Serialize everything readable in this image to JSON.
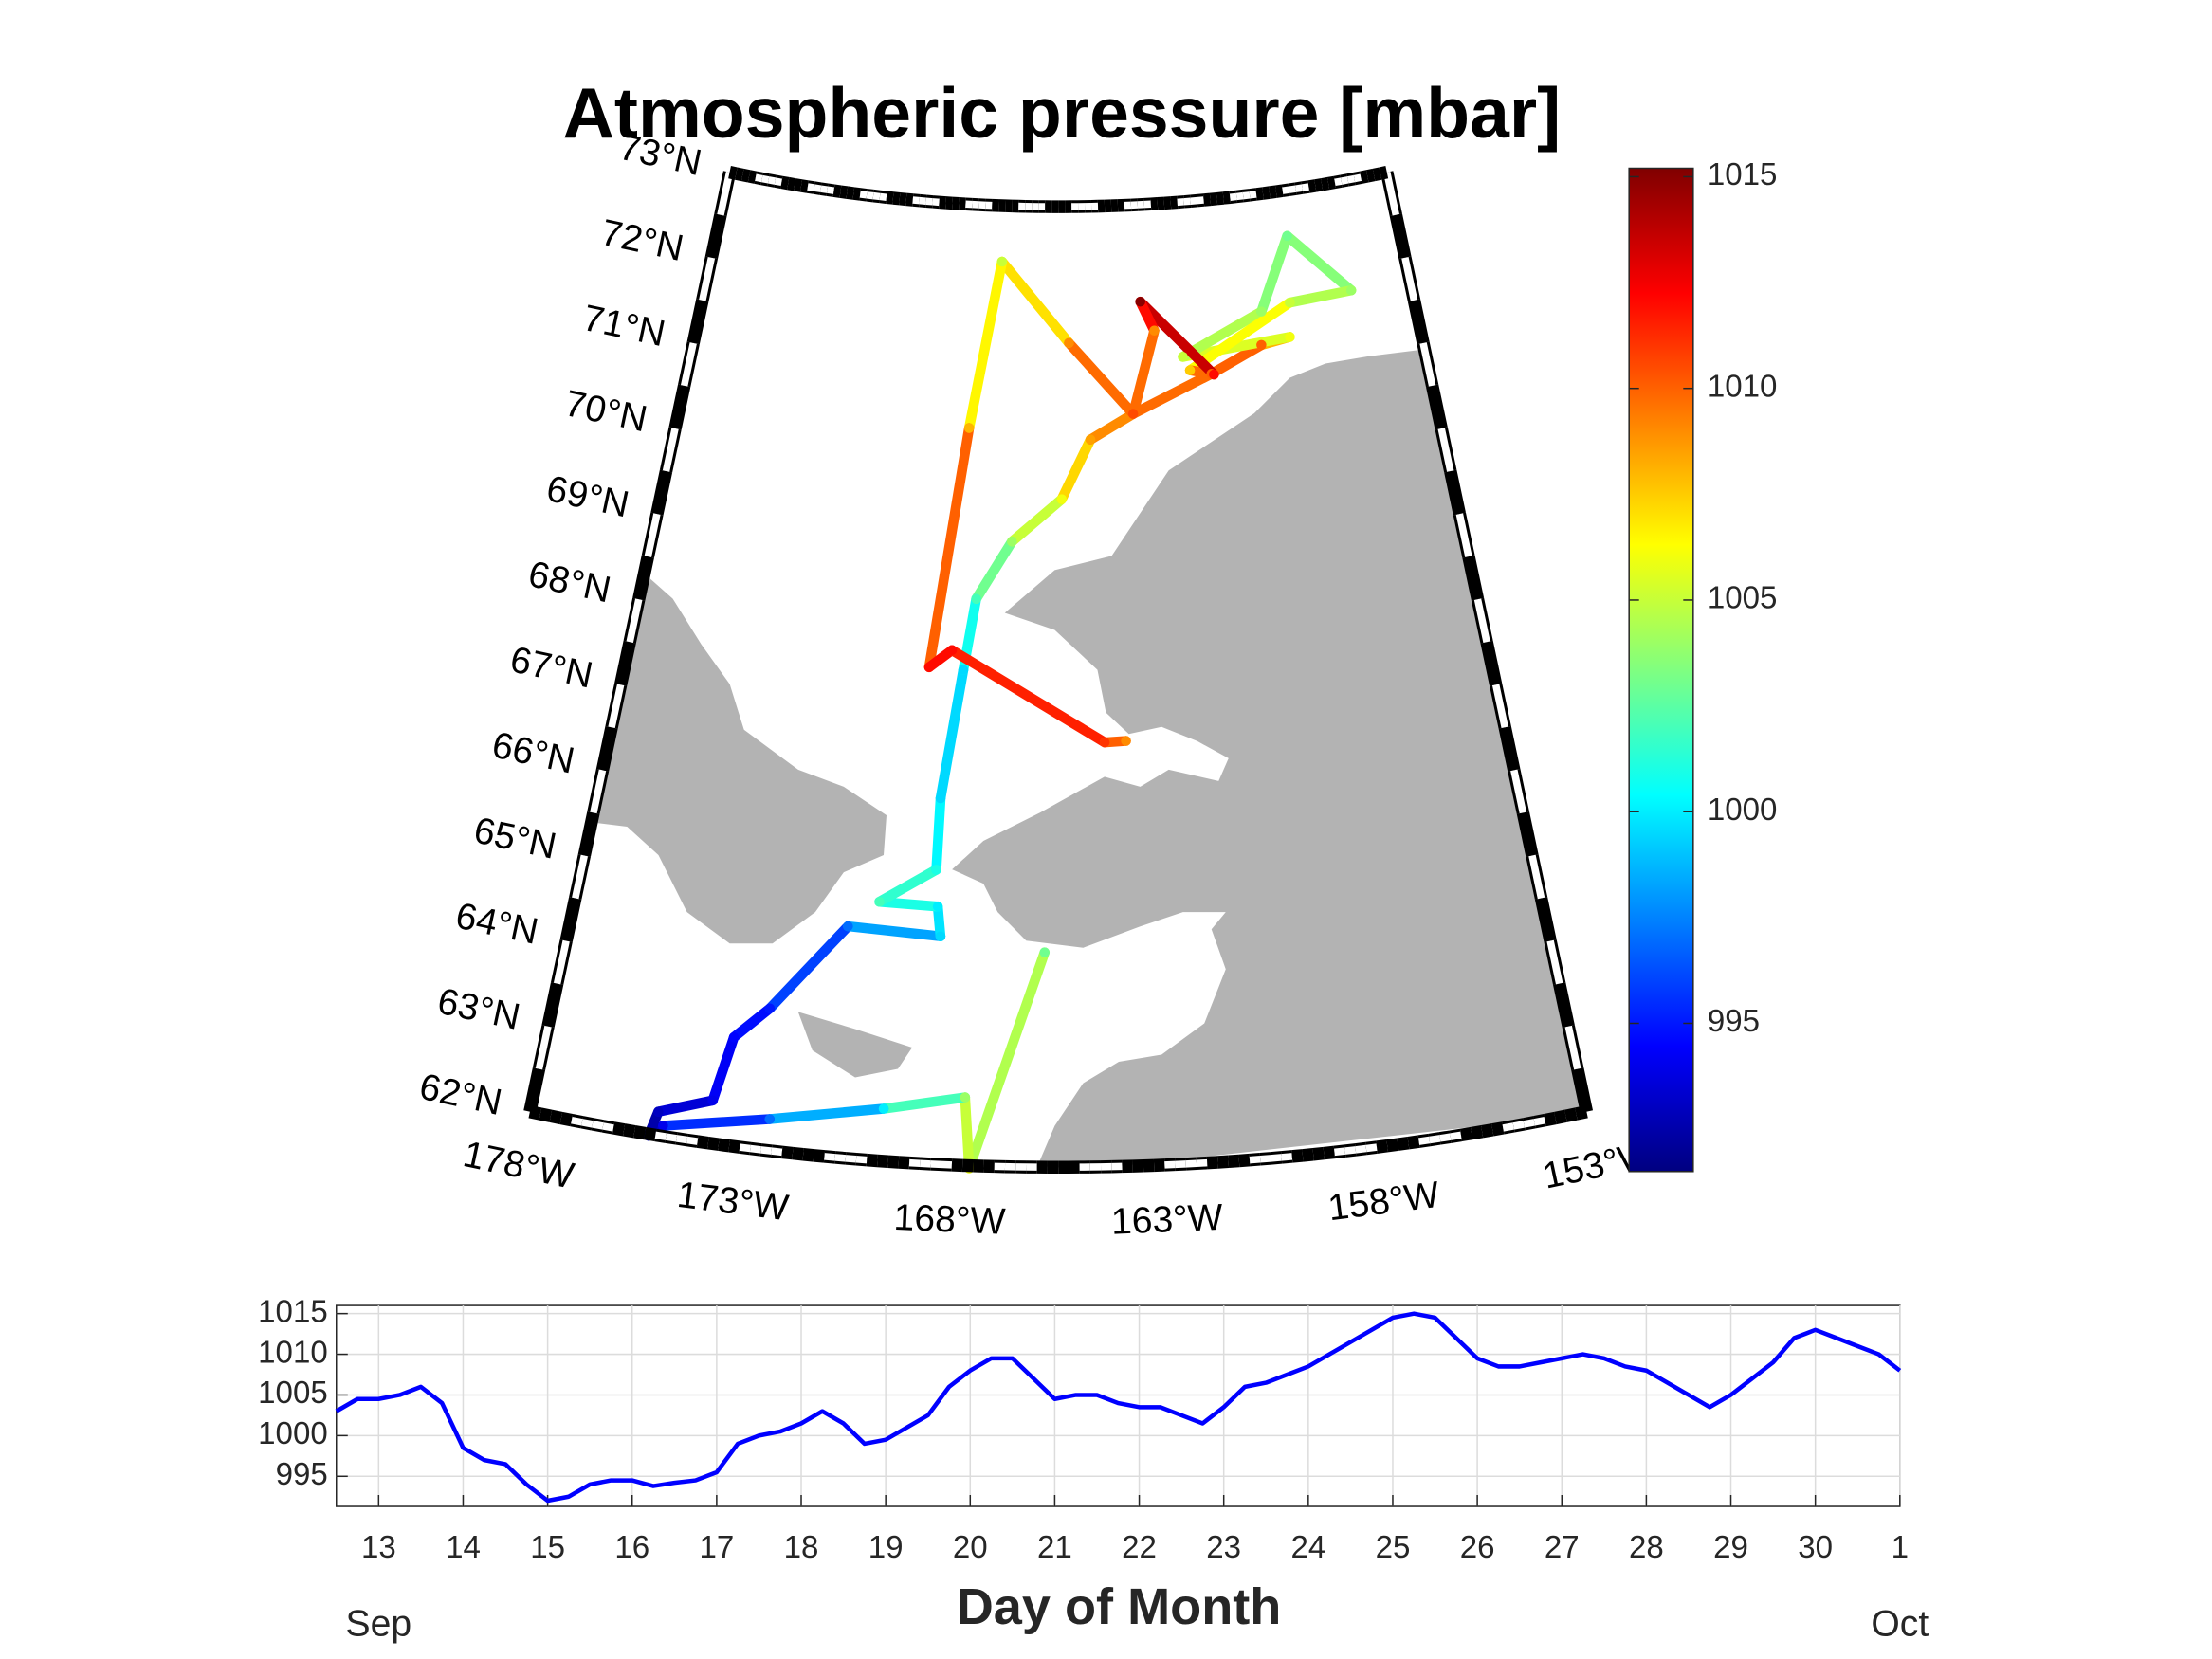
{
  "chart_data": [
    {
      "type": "map",
      "title": "Atmospheric pressure [mbar]",
      "latlim": [
        62,
        73
      ],
      "lonlim": [
        -178,
        -153
      ],
      "latticks": [
        {
          "value": 62,
          "label": "62°N"
        },
        {
          "value": 63,
          "label": "63°N"
        },
        {
          "value": 64,
          "label": "64°N"
        },
        {
          "value": 65,
          "label": "65°N"
        },
        {
          "value": 66,
          "label": "66°N"
        },
        {
          "value": 67,
          "label": "67°N"
        },
        {
          "value": 68,
          "label": "68°N"
        },
        {
          "value": 69,
          "label": "69°N"
        },
        {
          "value": 70,
          "label": "70°N"
        },
        {
          "value": 71,
          "label": "71°N"
        },
        {
          "value": 72,
          "label": "72°N"
        },
        {
          "value": 73,
          "label": "73°N"
        }
      ],
      "lonticks": [
        {
          "value": -178,
          "label": "178°W"
        },
        {
          "value": -173,
          "label": "173°W"
        },
        {
          "value": -168,
          "label": "168°W"
        },
        {
          "value": -163,
          "label": "163°W"
        },
        {
          "value": -158,
          "label": "158°W"
        },
        {
          "value": -153,
          "label": "153°W"
        }
      ],
      "track": {
        "lon": [
          -165.85,
          -167.59,
          -167.75,
          -169.69,
          -172.38,
          -174.86,
          -175.16,
          -175.02,
          -173.78,
          -173.48,
          -172.69,
          -170.94,
          -168.54,
          -168.65,
          -170.18,
          -168.74,
          -168.73,
          -168.27,
          -167.98,
          -166.94,
          -165.39,
          -164.44,
          -163.0,
          -160.28,
          -158.48,
          -157.47,
          -161.21,
          -158.34,
          -157.07,
          -155.1,
          -157.31,
          -161.0,
          -160.2,
          -162.58,
          -162.14,
          -163.0,
          -165.13,
          -167.55,
          -168.45,
          -169.27,
          -168.63,
          -164.19,
          -163.59
        ],
        "lat": [
          64.46,
          61.97,
          62.78,
          62.6,
          62.36,
          62.12,
          61.98,
          62.27,
          62.49,
          63.24,
          63.62,
          64.65,
          64.61,
          64.95,
          64.96,
          65.37,
          66.19,
          67.67,
          68.49,
          69.16,
          69.65,
          70.33,
          70.61,
          71.01,
          71.28,
          71.33,
          71.23,
          71.66,
          72.48,
          71.75,
          71.72,
          71.07,
          71.0,
          71.89,
          71.55,
          70.61,
          71.44,
          72.36,
          70.44,
          67.68,
          67.89,
          66.86,
          66.87
        ],
        "values": [
          1003,
          1006,
          1004,
          1000,
          997,
          994,
          992,
          993,
          994,
          994.5,
          995,
          997,
          999.5,
          1000,
          1002,
          1001,
          999.5,
          999.5,
          1002,
          1004,
          1006,
          1008.5,
          1009.5,
          1010,
          1010,
          1006,
          1005,
          1004,
          1003,
          1004,
          1005,
          1007.5,
          1012,
          1015,
          1009,
          1010.5,
          1009,
          1005,
          1008,
          1012,
          1012,
          1011,
          1009
        ]
      },
      "colormap": "jet",
      "clim": [
        991.5,
        1015.2
      ],
      "cticks": [
        995,
        1000,
        1005,
        1010,
        1015
      ]
    },
    {
      "type": "line",
      "xlabel": "Day of Month",
      "xlim": [
        12.5,
        31
      ],
      "ylim": [
        991.3,
        1016
      ],
      "xticks": [
        13,
        14,
        15,
        16,
        17,
        18,
        19,
        20,
        21,
        22,
        23,
        24,
        25,
        26,
        27,
        28,
        29,
        30,
        {
          "value": 31,
          "label": "1"
        }
      ],
      "yticks": [
        995,
        1000,
        1005,
        1010,
        1015
      ],
      "grid": true,
      "annotations": [
        {
          "text": "Sep",
          "x": 13
        },
        {
          "text": "Oct",
          "x": 31
        }
      ],
      "x": [
        12.5,
        12.75,
        13,
        13.25,
        13.5,
        13.75,
        14,
        14.25,
        14.5,
        14.75,
        15,
        15.25,
        15.5,
        15.75,
        16,
        16.25,
        16.5,
        16.75,
        17,
        17.25,
        17.5,
        17.75,
        18,
        18.25,
        18.5,
        18.75,
        19,
        19.25,
        19.5,
        19.75,
        20,
        20.25,
        20.5,
        20.75,
        21,
        21.25,
        21.5,
        21.75,
        22,
        22.25,
        22.5,
        22.75,
        23,
        23.25,
        23.5,
        23.75,
        24,
        24.25,
        24.5,
        24.75,
        25,
        25.25,
        25.5,
        25.75,
        26,
        26.25,
        26.5,
        26.75,
        27,
        27.25,
        27.5,
        27.75,
        28,
        28.25,
        28.5,
        28.75,
        29,
        29.25,
        29.5,
        29.75,
        30,
        30.25,
        30.5,
        30.75,
        31
      ],
      "series": [
        {
          "color": "#0000ff",
          "values": [
            1003,
            1004.5,
            1004.5,
            1005,
            1006,
            1004,
            998.5,
            997,
            996.5,
            994,
            992,
            992.5,
            994,
            994.5,
            994.5,
            993.8,
            994.2,
            994.5,
            995.5,
            999,
            1000,
            1000.5,
            1001.5,
            1003,
            1001.5,
            999,
            999.5,
            1001,
            1002.5,
            1006,
            1008,
            1009.5,
            1009.5,
            1007,
            1004.5,
            1005,
            1005,
            1004,
            1003.5,
            1003.5,
            1002.5,
            1001.5,
            1003.5,
            1006,
            1006.5,
            1007.5,
            1008.5,
            1010,
            1011.5,
            1013,
            1014.5,
            1015,
            1014.5,
            1012,
            1009.5,
            1008.5,
            1008.5,
            1009,
            1009.5,
            1010,
            1009.5,
            1008.5,
            1008,
            1006.5,
            1005,
            1003.5,
            1005,
            1007,
            1009,
            1012,
            1013,
            1012,
            1011,
            1010,
            1008
          ]
        }
      ]
    }
  ]
}
